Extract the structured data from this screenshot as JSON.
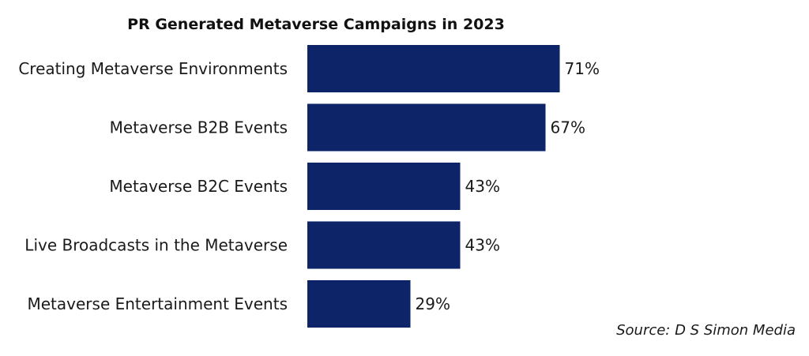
{
  "chart_data": {
    "type": "bar",
    "orientation": "horizontal",
    "title": "PR Generated Metaverse Campaigns in 2023",
    "categories": [
      "Creating Metaverse Environments",
      "Metaverse B2B Events",
      "Metaverse B2C Events",
      "Live Broadcasts in the Metaverse",
      "Metaverse Entertainment Events"
    ],
    "values": [
      71,
      67,
      43,
      43,
      29
    ],
    "value_labels": [
      "71%",
      "67%",
      "43%",
      "43%",
      "29%"
    ],
    "xlim": [
      0,
      100
    ],
    "grid": false,
    "bar_color": "#0d2468",
    "source": "Source: D S Simon Media"
  }
}
